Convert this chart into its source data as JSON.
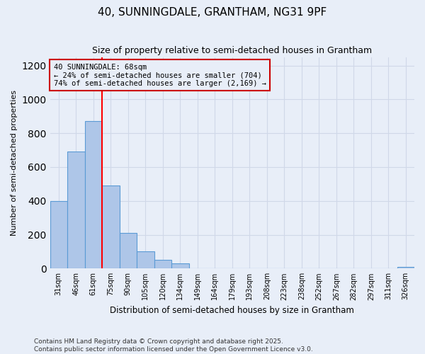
{
  "title": "40, SUNNINGDALE, GRANTHAM, NG31 9PF",
  "subtitle": "Size of property relative to semi-detached houses in Grantham",
  "xlabel": "Distribution of semi-detached houses by size in Grantham",
  "ylabel": "Number of semi-detached properties",
  "categories": [
    "31sqm",
    "46sqm",
    "61sqm",
    "75sqm",
    "90sqm",
    "105sqm",
    "120sqm",
    "134sqm",
    "149sqm",
    "164sqm",
    "179sqm",
    "193sqm",
    "208sqm",
    "223sqm",
    "238sqm",
    "252sqm",
    "267sqm",
    "282sqm",
    "297sqm",
    "311sqm",
    "326sqm"
  ],
  "values": [
    400,
    690,
    870,
    490,
    210,
    100,
    50,
    30,
    0,
    0,
    0,
    0,
    0,
    0,
    0,
    0,
    0,
    0,
    0,
    0,
    8
  ],
  "bar_color": "#aec6e8",
  "bar_edge_color": "#5b9bd5",
  "property_line_x": 2.5,
  "property_sqm": 68,
  "pct_smaller": 24,
  "count_smaller": 704,
  "pct_larger": 74,
  "count_larger": 2169,
  "property_label": "40 SUNNINGDALE: 68sqm",
  "annotation_box_color": "#cc0000",
  "ylim": [
    0,
    1250
  ],
  "yticks": [
    0,
    200,
    400,
    600,
    800,
    1000,
    1200
  ],
  "grid_color": "#d0d8e8",
  "bg_color": "#e8eef8",
  "footer_line1": "Contains HM Land Registry data © Crown copyright and database right 2025.",
  "footer_line2": "Contains public sector information licensed under the Open Government Licence v3.0."
}
